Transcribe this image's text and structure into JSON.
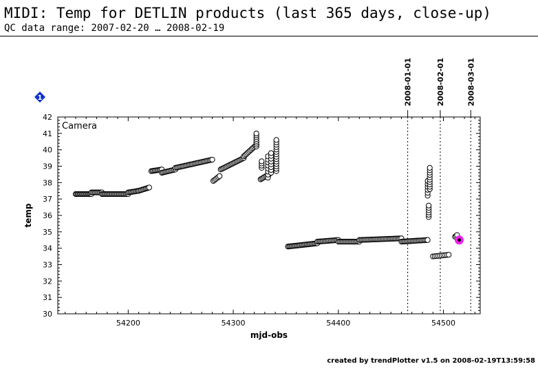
{
  "header": {
    "title": "MIDI: Temp for DETLIN products (last 365 days, close-up)",
    "subtitle": "QC data range: 2007-02-20 … 2008-02-19"
  },
  "footer": {
    "text": "created by trendPlotter v1.5 on 2008-02-19T13:59:58"
  },
  "legend": {
    "marker_label": "1",
    "marker_color": "#1133cc"
  },
  "chart_data": {
    "type": "scatter",
    "xlabel": "mjd-obs",
    "ylabel": "temp",
    "panel_label": "Camera",
    "xlim": [
      54133,
      54535
    ],
    "ylim": [
      30,
      42
    ],
    "x_ticks": [
      54200,
      54300,
      54400,
      54500
    ],
    "y_ticks": [
      30,
      31,
      32,
      33,
      34,
      35,
      36,
      37,
      38,
      39,
      40,
      41,
      42
    ],
    "date_markers": [
      {
        "label": "2008-01-01",
        "x": 54466
      },
      {
        "label": "2008-02-01",
        "x": 54497
      },
      {
        "label": "2008-03-01",
        "x": 54526
      }
    ],
    "point_color": "#000000",
    "highlight_color": "#ee22ee",
    "series": [
      {
        "name": "",
        "segments": [
          {
            "x0": 54150,
            "x1": 54165,
            "y0": 37.3,
            "y1": 37.3,
            "n": 16
          },
          {
            "x0": 54165,
            "x1": 54175,
            "y0": 37.4,
            "y1": 37.4,
            "n": 10
          },
          {
            "x0": 54175,
            "x1": 54200,
            "y0": 37.3,
            "y1": 37.3,
            "n": 24
          },
          {
            "x0": 54200,
            "x1": 54210,
            "y0": 37.4,
            "y1": 37.5,
            "n": 10
          },
          {
            "x0": 54210,
            "x1": 54220,
            "y0": 37.5,
            "y1": 37.7,
            "n": 10
          },
          {
            "x0": 54222,
            "x1": 54232,
            "y0": 38.7,
            "y1": 38.8,
            "n": 10
          },
          {
            "x0": 54232,
            "x1": 54245,
            "y0": 38.6,
            "y1": 38.8,
            "n": 12
          },
          {
            "x0": 54245,
            "x1": 54280,
            "y0": 38.9,
            "y1": 39.4,
            "n": 30
          },
          {
            "x0": 54281,
            "x1": 54287,
            "y0": 38.1,
            "y1": 38.4,
            "n": 6
          },
          {
            "x0": 54288,
            "x1": 54310,
            "y0": 38.8,
            "y1": 39.5,
            "n": 20
          },
          {
            "x0": 54310,
            "x1": 54322,
            "y0": 39.6,
            "y1": 40.3,
            "n": 12
          },
          {
            "x0": 54322,
            "x1": 54322,
            "y0": 40.2,
            "y1": 41.0,
            "n": 8
          },
          {
            "x0": 54326,
            "x1": 54334,
            "y0": 38.2,
            "y1": 38.5,
            "n": 8
          },
          {
            "x0": 54327,
            "x1": 54327,
            "y0": 38.9,
            "y1": 39.3,
            "n": 4
          },
          {
            "x0": 54333,
            "x1": 54333,
            "y0": 38.3,
            "y1": 39.6,
            "n": 8
          },
          {
            "x0": 54336,
            "x1": 54336,
            "y0": 38.6,
            "y1": 39.8,
            "n": 8
          },
          {
            "x0": 54341,
            "x1": 54341,
            "y0": 38.7,
            "y1": 40.6,
            "n": 14
          },
          {
            "x0": 54352,
            "x1": 54380,
            "y0": 34.1,
            "y1": 34.3,
            "n": 26
          },
          {
            "x0": 54380,
            "x1": 54400,
            "y0": 34.4,
            "y1": 34.5,
            "n": 18
          },
          {
            "x0": 54400,
            "x1": 54420,
            "y0": 34.4,
            "y1": 34.4,
            "n": 18
          },
          {
            "x0": 54420,
            "x1": 54460,
            "y0": 34.5,
            "y1": 34.6,
            "n": 34
          },
          {
            "x0": 54460,
            "x1": 54485,
            "y0": 34.4,
            "y1": 34.5,
            "n": 22
          },
          {
            "x0": 54485,
            "x1": 54485,
            "y0": 37.2,
            "y1": 38.1,
            "n": 6
          },
          {
            "x0": 54487,
            "x1": 54487,
            "y0": 37.6,
            "y1": 38.9,
            "n": 10
          },
          {
            "x0": 54486,
            "x1": 54486,
            "y0": 35.9,
            "y1": 36.6,
            "n": 6
          },
          {
            "x0": 54490,
            "x1": 54505,
            "y0": 33.5,
            "y1": 33.6,
            "n": 10
          },
          {
            "x0": 54511,
            "x1": 54513,
            "y0": 34.7,
            "y1": 34.8,
            "n": 3
          }
        ]
      }
    ],
    "highlight_point": {
      "x": 54515,
      "y": 34.5
    }
  }
}
